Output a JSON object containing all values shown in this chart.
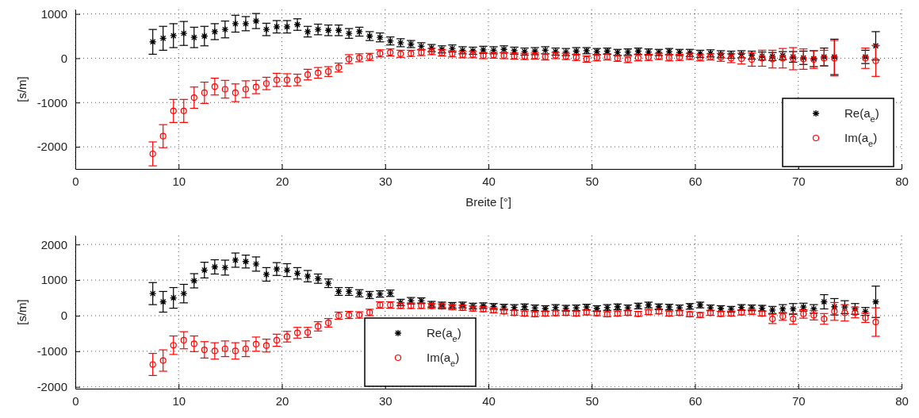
{
  "chart_data": [
    {
      "type": "scatter",
      "xlabel": "Breite [°]",
      "ylabel": "[s/m]",
      "xlim": [
        0,
        80
      ],
      "ylim": [
        -2500,
        1100
      ],
      "xticks": [
        0,
        10,
        20,
        30,
        40,
        50,
        60,
        70,
        80
      ],
      "yticks": [
        -2000,
        -1000,
        0,
        1000
      ],
      "grid": true,
      "legend": "bottom right",
      "x": [
        7.5,
        8.5,
        9.5,
        10.5,
        11.5,
        12.5,
        13.5,
        14.5,
        15.5,
        16.5,
        17.5,
        18.5,
        19.5,
        20.5,
        21.5,
        22.5,
        23.5,
        24.5,
        25.5,
        26.5,
        27.5,
        28.5,
        29.5,
        30.5,
        31.5,
        32.5,
        33.5,
        34.5,
        35.5,
        36.5,
        37.5,
        38.5,
        39.5,
        40.5,
        41.5,
        42.5,
        43.5,
        44.5,
        45.5,
        46.5,
        47.5,
        48.5,
        49.5,
        50.5,
        51.5,
        52.5,
        53.5,
        54.5,
        55.5,
        56.5,
        57.5,
        58.5,
        59.5,
        60.5,
        61.5,
        62.5,
        63.5,
        64.5,
        65.5,
        66.5,
        67.5,
        68.5,
        69.5,
        70.5,
        71.5,
        72.5,
        73.5,
        76.5,
        77.5
      ],
      "series": [
        {
          "name": "Re(a$_{e}$)",
          "color": "#000000",
          "marker": "cross",
          "values": [
            370,
            450,
            510,
            560,
            470,
            500,
            600,
            650,
            780,
            780,
            840,
            650,
            710,
            710,
            760,
            600,
            650,
            630,
            630,
            560,
            600,
            500,
            470,
            390,
            350,
            320,
            270,
            230,
            200,
            220,
            180,
            170,
            190,
            180,
            200,
            170,
            150,
            160,
            180,
            150,
            140,
            160,
            170,
            150,
            160,
            130,
            140,
            160,
            140,
            130,
            150,
            130,
            120,
            100,
            110,
            90,
            80,
            90,
            70,
            50,
            40,
            60,
            30,
            10,
            -10,
            30,
            30,
            30,
            280
          ],
          "errors": [
            280,
            270,
            270,
            270,
            230,
            220,
            180,
            190,
            190,
            160,
            170,
            140,
            140,
            140,
            130,
            120,
            120,
            120,
            120,
            110,
            100,
            100,
            100,
            90,
            90,
            80,
            80,
            80,
            80,
            80,
            80,
            80,
            80,
            80,
            80,
            80,
            80,
            80,
            80,
            80,
            80,
            80,
            70,
            70,
            70,
            70,
            70,
            70,
            70,
            70,
            70,
            70,
            80,
            80,
            80,
            80,
            80,
            80,
            90,
            90,
            90,
            90,
            120,
            150,
            180,
            200,
            400,
            150,
            320
          ]
        },
        {
          "name": "Im(a$_{e}$)",
          "color": "#ff0000",
          "marker": "circle",
          "values": [
            -2160,
            -1760,
            -1190,
            -1190,
            -890,
            -780,
            -640,
            -700,
            -780,
            -700,
            -650,
            -570,
            -490,
            -490,
            -490,
            -370,
            -330,
            -300,
            -210,
            -20,
            10,
            30,
            110,
            130,
            100,
            110,
            130,
            150,
            120,
            100,
            80,
            80,
            60,
            70,
            60,
            50,
            40,
            50,
            30,
            60,
            40,
            20,
            -20,
            10,
            30,
            0,
            -30,
            10,
            20,
            40,
            10,
            20,
            40,
            10,
            30,
            20,
            0,
            -10,
            -30,
            0,
            -20,
            0,
            -10,
            -20,
            -30,
            0,
            0,
            0,
            -60
          ],
          "errors": [
            270,
            260,
            260,
            260,
            240,
            240,
            190,
            200,
            200,
            190,
            150,
            140,
            150,
            140,
            130,
            120,
            120,
            110,
            100,
            100,
            90,
            80,
            80,
            80,
            80,
            70,
            70,
            70,
            70,
            70,
            70,
            70,
            70,
            70,
            70,
            70,
            70,
            70,
            70,
            70,
            70,
            70,
            70,
            70,
            70,
            70,
            70,
            70,
            70,
            70,
            70,
            70,
            70,
            70,
            70,
            90,
            100,
            120,
            150,
            180,
            200,
            220,
            250,
            230,
            200,
            180,
            400,
            230,
            350
          ]
        }
      ]
    },
    {
      "type": "scatter",
      "ylabel": "[s/m]",
      "xlim": [
        0,
        80
      ],
      "ylim": [
        -2050,
        2250
      ],
      "xticks": [
        0,
        10,
        20,
        30,
        40,
        50,
        60,
        70,
        80
      ],
      "yticks": [
        -2000,
        -1000,
        0,
        1000,
        2000
      ],
      "grid": true,
      "legend": "bottom",
      "x": [
        7.5,
        8.5,
        9.5,
        10.5,
        11.5,
        12.5,
        13.5,
        14.5,
        15.5,
        16.5,
        17.5,
        18.5,
        19.5,
        20.5,
        21.5,
        22.5,
        23.5,
        24.5,
        25.5,
        26.5,
        27.5,
        28.5,
        29.5,
        30.5,
        31.5,
        32.5,
        33.5,
        34.5,
        35.5,
        36.5,
        37.5,
        38.5,
        39.5,
        40.5,
        41.5,
        42.5,
        43.5,
        44.5,
        45.5,
        46.5,
        47.5,
        48.5,
        49.5,
        50.5,
        51.5,
        52.5,
        53.5,
        54.5,
        55.5,
        56.5,
        57.5,
        58.5,
        59.5,
        60.5,
        61.5,
        62.5,
        63.5,
        64.5,
        65.5,
        66.5,
        67.5,
        68.5,
        69.5,
        70.5,
        71.5,
        72.5,
        73.5,
        74.5,
        75.5,
        76.5,
        77.5
      ],
      "series": [
        {
          "name": "Re(a$_{e}$)",
          "color": "#000000",
          "marker": "cross",
          "values": [
            620,
            390,
            500,
            620,
            980,
            1280,
            1370,
            1350,
            1560,
            1520,
            1450,
            1160,
            1310,
            1280,
            1190,
            1110,
            1040,
            910,
            680,
            680,
            630,
            580,
            610,
            630,
            370,
            420,
            420,
            320,
            300,
            290,
            300,
            270,
            280,
            260,
            240,
            230,
            250,
            220,
            200,
            230,
            210,
            220,
            240,
            200,
            230,
            250,
            220,
            270,
            300,
            250,
            240,
            220,
            260,
            300,
            220,
            200,
            180,
            230,
            220,
            210,
            160,
            190,
            190,
            240,
            190,
            390,
            250,
            240,
            190,
            120,
            390
          ],
          "errors": [
            310,
            290,
            290,
            260,
            200,
            220,
            200,
            210,
            200,
            180,
            200,
            190,
            180,
            180,
            160,
            160,
            130,
            120,
            110,
            110,
            100,
            100,
            90,
            90,
            90,
            90,
            80,
            80,
            80,
            80,
            80,
            80,
            80,
            80,
            80,
            80,
            80,
            80,
            80,
            80,
            80,
            80,
            80,
            80,
            80,
            80,
            80,
            80,
            80,
            80,
            80,
            80,
            80,
            80,
            80,
            80,
            80,
            80,
            80,
            80,
            100,
            120,
            150,
            110,
            120,
            200,
            230,
            180,
            150,
            110,
            440
          ]
        },
        {
          "name": "Im(a$_{e}$)",
          "color": "#ff0000",
          "marker": "circle",
          "values": [
            -1370,
            -1260,
            -830,
            -690,
            -790,
            -960,
            -990,
            -930,
            -990,
            -930,
            -800,
            -840,
            -690,
            -590,
            -480,
            -470,
            -300,
            -200,
            0,
            20,
            20,
            90,
            300,
            300,
            280,
            280,
            280,
            270,
            260,
            240,
            220,
            200,
            180,
            150,
            120,
            80,
            60,
            40,
            60,
            70,
            80,
            60,
            90,
            70,
            40,
            60,
            80,
            50,
            100,
            120,
            60,
            80,
            40,
            20,
            80,
            50,
            60,
            90,
            110,
            60,
            -90,
            -20,
            -90,
            50,
            10,
            -90,
            120,
            80,
            90,
            -60,
            -180
          ],
          "errors": [
            310,
            300,
            260,
            240,
            220,
            230,
            230,
            220,
            230,
            220,
            200,
            180,
            170,
            150,
            150,
            140,
            130,
            120,
            100,
            100,
            90,
            90,
            90,
            90,
            80,
            80,
            80,
            70,
            70,
            70,
            70,
            70,
            70,
            70,
            70,
            70,
            70,
            70,
            70,
            70,
            70,
            70,
            70,
            70,
            70,
            70,
            70,
            70,
            70,
            70,
            70,
            70,
            70,
            70,
            70,
            70,
            70,
            70,
            70,
            70,
            130,
            110,
            150,
            120,
            130,
            150,
            250,
            230,
            150,
            130,
            400
          ]
        }
      ]
    }
  ]
}
